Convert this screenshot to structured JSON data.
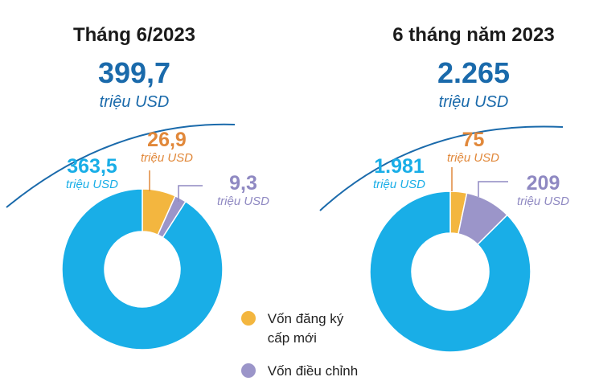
{
  "colors": {
    "title": "#1b1b1b",
    "total": "#1a6aab",
    "main_blue": "#19aee7",
    "orange": "#f3b63f",
    "purple": "#9b95c9",
    "orange_text": "#e1883a",
    "purple_text": "#8f89c2"
  },
  "chart_data": [
    {
      "type": "pie",
      "title": "Tháng 6/2023",
      "total": "399,7",
      "total_unit": "triệu USD",
      "slices": [
        {
          "value": 363.5,
          "label": "363,5",
          "unit": "triệu USD",
          "color": "#19aee7"
        },
        {
          "value": 26.9,
          "label": "26,9",
          "unit": "triệu USD",
          "color": "#f3b63f"
        },
        {
          "value": 9.3,
          "label": "9,3",
          "unit": "triệu USD",
          "color": "#9b95c9"
        }
      ]
    },
    {
      "type": "pie",
      "title": "6 tháng năm 2023",
      "total": "2.265",
      "total_unit": "triệu USD",
      "slices": [
        {
          "value": 1981,
          "label": "1.981",
          "unit": "triệu USD",
          "color": "#19aee7"
        },
        {
          "value": 75,
          "label": "75",
          "unit": "triệu USD",
          "color": "#f3b63f"
        },
        {
          "value": 209,
          "label": "209",
          "unit": "triệu USD",
          "color": "#9b95c9"
        }
      ]
    }
  ],
  "legend": [
    {
      "label_line1": "Vốn đăng ký",
      "label_line2": "cấp mới",
      "color_key": "orange"
    },
    {
      "label_line1": "Vốn điều chỉnh",
      "color_key": "purple"
    }
  ]
}
